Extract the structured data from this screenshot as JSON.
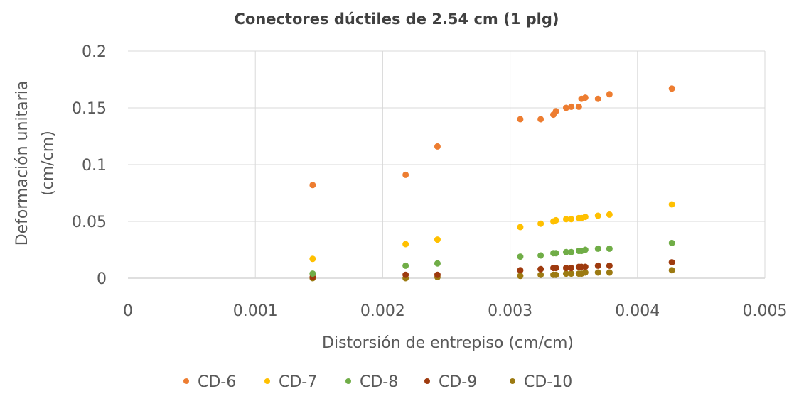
{
  "chart_data": {
    "type": "scatter",
    "title": "Conectores dúctiles de 2.54 cm (1 plg)",
    "xlabel": "Distorsión de entrepiso (cm/cm)",
    "ylabel": [
      "Deformación unitaria",
      "(cm/cm)"
    ],
    "xlim": [
      0,
      0.005
    ],
    "ylim": [
      0,
      0.2
    ],
    "x_ticks": [
      "0",
      "0.001",
      "0.002",
      "0.003",
      "0.004",
      "0.005"
    ],
    "y_ticks": [
      "0",
      "0.05",
      "0.1",
      "0.15",
      "0.2"
    ],
    "grid": true,
    "legend_position": "bottom",
    "series": [
      {
        "name": "CD-6",
        "color": "#ED7D31",
        "points": [
          [
            0.00145,
            0.082
          ],
          [
            0.00218,
            0.091
          ],
          [
            0.00243,
            0.116
          ],
          [
            0.00308,
            0.14
          ],
          [
            0.00324,
            0.14
          ],
          [
            0.00334,
            0.144
          ],
          [
            0.00336,
            0.147
          ],
          [
            0.00344,
            0.15
          ],
          [
            0.00348,
            0.151
          ],
          [
            0.00354,
            0.151
          ],
          [
            0.00356,
            0.158
          ],
          [
            0.00359,
            0.159
          ],
          [
            0.00369,
            0.158
          ],
          [
            0.00378,
            0.162
          ],
          [
            0.00427,
            0.167
          ]
        ]
      },
      {
        "name": "CD-7",
        "color": "#FFC000",
        "points": [
          [
            0.00145,
            0.017
          ],
          [
            0.00218,
            0.03
          ],
          [
            0.00243,
            0.034
          ],
          [
            0.00308,
            0.045
          ],
          [
            0.00324,
            0.048
          ],
          [
            0.00334,
            0.05
          ],
          [
            0.00336,
            0.051
          ],
          [
            0.00344,
            0.052
          ],
          [
            0.00348,
            0.052
          ],
          [
            0.00354,
            0.053
          ],
          [
            0.00356,
            0.053
          ],
          [
            0.00359,
            0.054
          ],
          [
            0.00369,
            0.055
          ],
          [
            0.00378,
            0.056
          ],
          [
            0.00427,
            0.065
          ]
        ]
      },
      {
        "name": "CD-8",
        "color": "#70AD47",
        "points": [
          [
            0.00145,
            0.004
          ],
          [
            0.00218,
            0.011
          ],
          [
            0.00243,
            0.013
          ],
          [
            0.00308,
            0.019
          ],
          [
            0.00324,
            0.02
          ],
          [
            0.00334,
            0.022
          ],
          [
            0.00336,
            0.022
          ],
          [
            0.00344,
            0.023
          ],
          [
            0.00348,
            0.023
          ],
          [
            0.00354,
            0.024
          ],
          [
            0.00356,
            0.024
          ],
          [
            0.00359,
            0.025
          ],
          [
            0.00369,
            0.026
          ],
          [
            0.00378,
            0.026
          ],
          [
            0.00427,
            0.031
          ]
        ]
      },
      {
        "name": "CD-9",
        "color": "#9E3A0E",
        "points": [
          [
            0.00145,
            0.001
          ],
          [
            0.00218,
            0.003
          ],
          [
            0.00243,
            0.003
          ],
          [
            0.00308,
            0.007
          ],
          [
            0.00324,
            0.008
          ],
          [
            0.00334,
            0.009
          ],
          [
            0.00336,
            0.009
          ],
          [
            0.00344,
            0.009
          ],
          [
            0.00348,
            0.009
          ],
          [
            0.00354,
            0.01
          ],
          [
            0.00356,
            0.01
          ],
          [
            0.00359,
            0.01
          ],
          [
            0.00369,
            0.011
          ],
          [
            0.00378,
            0.011
          ],
          [
            0.00427,
            0.014
          ]
        ]
      },
      {
        "name": "CD-10",
        "color": "#9C7A12",
        "points": [
          [
            0.00145,
            0.0
          ],
          [
            0.00218,
            0.0
          ],
          [
            0.00243,
            0.001
          ],
          [
            0.00308,
            0.002
          ],
          [
            0.00324,
            0.003
          ],
          [
            0.00334,
            0.003
          ],
          [
            0.00336,
            0.003
          ],
          [
            0.00344,
            0.004
          ],
          [
            0.00348,
            0.004
          ],
          [
            0.00354,
            0.004
          ],
          [
            0.00356,
            0.004
          ],
          [
            0.00359,
            0.005
          ],
          [
            0.00369,
            0.005
          ],
          [
            0.00378,
            0.005
          ],
          [
            0.00427,
            0.007
          ]
        ]
      }
    ]
  }
}
